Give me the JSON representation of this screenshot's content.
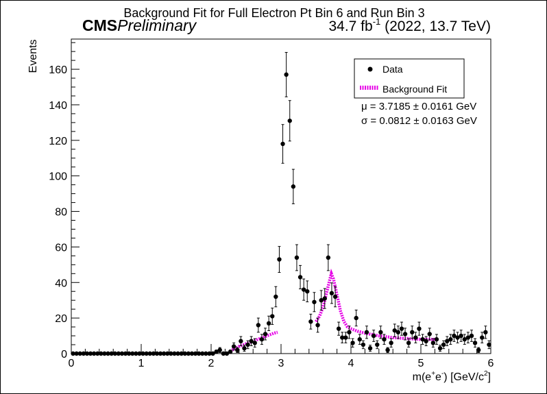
{
  "chart_data": {
    "type": "scatter",
    "title": "Background Fit for Full Electron Pt Bin 6 and Run Bin 3",
    "experiment": {
      "bold": "CMS",
      "italic": "Preliminary"
    },
    "lumi": {
      "value": "34.7 fb",
      "sup": "-1",
      "rest": " (2022, 13.7 TeV)"
    },
    "xlabel": {
      "pre": "m(e",
      "sup1": "+",
      "mid": "e",
      "sup2": "-",
      "post": ") [GeV/c",
      "sup3": "2",
      "end": "]"
    },
    "ylabel": "Events",
    "xlim": [
      0,
      6
    ],
    "ylim": [
      0,
      177
    ],
    "xticks": [
      "0",
      "1",
      "2",
      "3",
      "4",
      "5",
      "6"
    ],
    "yticks": [
      "0",
      "20",
      "40",
      "60",
      "80",
      "100",
      "120",
      "140",
      "160"
    ],
    "legend": {
      "placement": "top-right",
      "entries": [
        {
          "label": "Data",
          "marker": "dot"
        },
        {
          "label": "Background Fit",
          "marker": "dashed-line"
        }
      ]
    },
    "fit_params": [
      {
        "text": "μ = 3.7185 ± 0.0161 GeV"
      },
      {
        "text": "σ = 0.0812 ± 0.0163 GeV"
      }
    ],
    "colors": {
      "data": "#000000",
      "fit": "#e600e6"
    },
    "series": [
      {
        "name": "Data",
        "x": [
          0.025,
          0.075,
          0.125,
          0.175,
          0.225,
          0.275,
          0.325,
          0.375,
          0.425,
          0.475,
          0.525,
          0.575,
          0.625,
          0.675,
          0.725,
          0.775,
          0.825,
          0.875,
          0.925,
          0.975,
          1.025,
          1.075,
          1.125,
          1.175,
          1.225,
          1.275,
          1.325,
          1.375,
          1.425,
          1.475,
          1.525,
          1.575,
          1.625,
          1.675,
          1.725,
          1.775,
          1.825,
          1.875,
          1.925,
          1.975,
          2.025,
          2.075,
          2.125,
          2.175,
          2.225,
          2.275,
          2.325,
          2.375,
          2.425,
          2.475,
          2.525,
          2.575,
          2.625,
          2.675,
          2.725,
          2.775,
          2.825,
          2.875,
          2.925,
          2.975,
          3.025,
          3.075,
          3.125,
          3.175,
          3.225,
          3.275,
          3.325,
          3.375,
          3.425,
          3.475,
          3.525,
          3.575,
          3.625,
          3.675,
          3.725,
          3.775,
          3.825,
          3.875,
          3.925,
          3.975,
          4.025,
          4.075,
          4.125,
          4.175,
          4.225,
          4.275,
          4.325,
          4.375,
          4.425,
          4.475,
          4.525,
          4.575,
          4.625,
          4.675,
          4.725,
          4.775,
          4.825,
          4.875,
          4.925,
          4.975,
          5.025,
          5.075,
          5.125,
          5.175,
          5.225,
          5.275,
          5.325,
          5.375,
          5.425,
          5.475,
          5.525,
          5.575,
          5.625,
          5.675,
          5.725,
          5.775,
          5.825,
          5.875,
          5.925,
          5.975
        ],
        "y": [
          0,
          0,
          0,
          0,
          0,
          0,
          0,
          0,
          0,
          0,
          0,
          0,
          0,
          0,
          0,
          0,
          0,
          0,
          0,
          0,
          0,
          0,
          0,
          0,
          0,
          0,
          0,
          0,
          0,
          0,
          0,
          0,
          0,
          0,
          0,
          0,
          0,
          0,
          0,
          0,
          0,
          1,
          2,
          0,
          0,
          1,
          4,
          2,
          7,
          3,
          5,
          7,
          6,
          16,
          8,
          11,
          17,
          21,
          32,
          53,
          118,
          157,
          131,
          94,
          54,
          43,
          36,
          35,
          18,
          29,
          16,
          30,
          31,
          54,
          34,
          32,
          14,
          9,
          9,
          12,
          6,
          20,
          8,
          5,
          12,
          3,
          10,
          5,
          12,
          8,
          2,
          6,
          13,
          12,
          14,
          11,
          6,
          12,
          9,
          14,
          8,
          7,
          11,
          6,
          8,
          3,
          5,
          7,
          8,
          10,
          9,
          10,
          8,
          9,
          10,
          6,
          2,
          9,
          12,
          5
        ],
        "err": [
          0,
          0,
          0,
          0,
          0,
          0,
          0,
          0,
          0,
          0,
          0,
          0,
          0,
          0,
          0,
          0,
          0,
          0,
          0,
          0,
          0,
          0,
          0,
          0,
          0,
          0,
          0,
          0,
          0,
          0,
          0,
          0,
          0,
          0,
          0,
          0,
          0,
          0,
          0,
          0,
          0,
          1.0,
          1.4,
          0,
          0,
          1.0,
          2.0,
          1.4,
          2.6,
          1.7,
          2.2,
          2.6,
          2.4,
          4.0,
          2.8,
          3.3,
          4.1,
          4.6,
          5.7,
          7.3,
          10.9,
          12.5,
          11.4,
          9.7,
          7.3,
          6.6,
          6.0,
          5.9,
          4.2,
          5.4,
          4.0,
          5.5,
          5.6,
          7.3,
          5.8,
          5.7,
          3.7,
          3.0,
          3.0,
          3.5,
          2.4,
          4.5,
          2.8,
          2.2,
          3.5,
          1.7,
          3.2,
          2.2,
          3.5,
          2.8,
          1.4,
          2.4,
          3.6,
          3.5,
          3.7,
          3.3,
          2.4,
          3.5,
          3.0,
          3.7,
          2.8,
          2.6,
          3.3,
          2.4,
          2.8,
          1.7,
          2.2,
          2.6,
          2.8,
          3.2,
          3.0,
          3.2,
          2.8,
          3.0,
          3.2,
          2.4,
          1.4,
          3.0,
          3.5,
          2.2
        ]
      },
      {
        "name": "Background Fit",
        "segments": [
          {
            "x": [
              2.3,
              2.4,
              2.5,
              2.6,
              2.7,
              2.8,
              2.9,
              2.95
            ],
            "y": [
              2,
              4,
              5.5,
              7,
              8.5,
              10,
              11.5,
              12
            ]
          },
          {
            "x": [
              3.5,
              3.55,
              3.6,
              3.65,
              3.7,
              3.72,
              3.75,
              3.8,
              3.85,
              3.9,
              3.95,
              4.0,
              4.1,
              4.2,
              4.4,
              4.6,
              4.8,
              5.0,
              5.2
            ],
            "y": [
              18,
              21,
              26,
              34,
              42,
              45,
              42,
              33,
              24,
              18,
              15,
              14,
              12.5,
              11.5,
              10,
              9,
              8.5,
              8,
              8
            ]
          }
        ]
      }
    ]
  }
}
